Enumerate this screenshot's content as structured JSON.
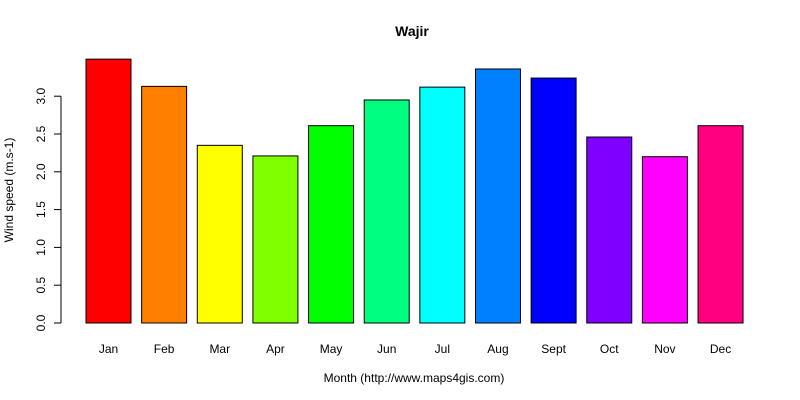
{
  "chart_data": {
    "type": "bar",
    "title": "Wajir",
    "xlabel": "Month (http://www.maps4gis.com)",
    "ylabel": "Wind speed (m.s-1)",
    "categories": [
      "Jan",
      "Feb",
      "Mar",
      "Apr",
      "May",
      "Jun",
      "Jul",
      "Aug",
      "Sept",
      "Oct",
      "Nov",
      "Dec"
    ],
    "values": [
      3.49,
      3.13,
      2.35,
      2.21,
      2.61,
      2.95,
      3.12,
      3.36,
      3.24,
      2.46,
      2.2,
      2.61
    ],
    "colors": [
      "#FF0000",
      "#FF8000",
      "#FFFF00",
      "#80FF00",
      "#00FF00",
      "#00FF80",
      "#00FFFF",
      "#0080FF",
      "#0000FF",
      "#8000FF",
      "#FF00FF",
      "#FF0080"
    ],
    "ylim": [
      0,
      3.5
    ],
    "yticks": [
      0.0,
      0.5,
      1.0,
      1.5,
      2.0,
      2.5,
      3.0
    ],
    "ytick_labels": [
      "0.0",
      "0.5",
      "1.0",
      "1.5",
      "2.0",
      "2.5",
      "3.0"
    ],
    "grid": false,
    "legend": false
  }
}
